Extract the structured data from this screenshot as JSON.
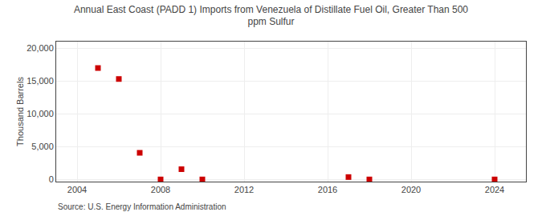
{
  "chart_data": {
    "type": "scatter",
    "title": "Annual East Coast (PADD 1) Imports from Venezuela of Distillate Fuel Oil, Greater Than 500\nppm Sulfur",
    "ylabel": "Thousand Barrels",
    "annotations": [
      "Source: U.S. Energy Information Administration"
    ],
    "x": [
      2005,
      2006,
      2007,
      2008,
      2009,
      2010,
      2017,
      2018,
      2024
    ],
    "values": [
      16980,
      15310,
      4080,
      30,
      1590,
      30,
      390,
      30,
      30
    ],
    "color": "#cc0000",
    "marker": "square",
    "xlim": [
      2003.0,
      2025.5
    ],
    "xticks": [
      2004,
      2008,
      2012,
      2016,
      2020,
      2024
    ],
    "ylim": [
      -300,
      21000
    ],
    "yticks": [
      0,
      {
        "value": 5000,
        "label": "5,000"
      },
      {
        "value": 10000,
        "label": "10,000"
      },
      {
        "value": 15000,
        "label": "15,000"
      },
      {
        "value": 20000,
        "label": "20,000"
      }
    ],
    "grid": true
  }
}
